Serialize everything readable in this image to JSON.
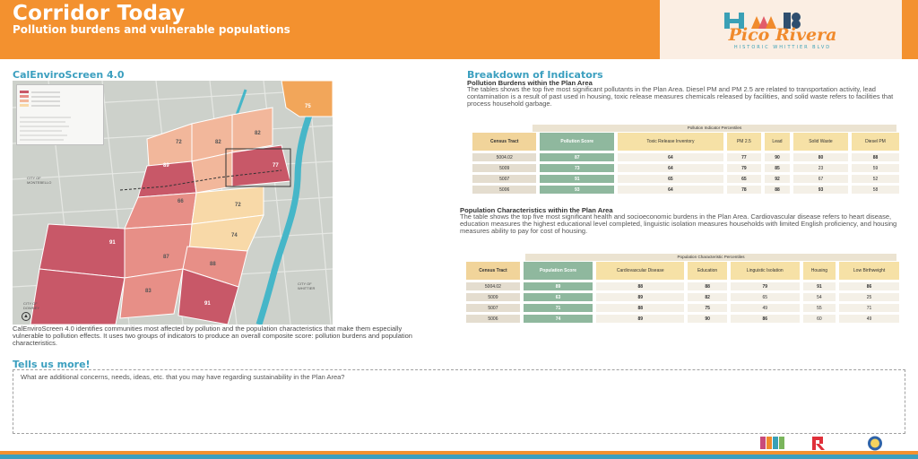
{
  "header": {
    "title": "Corridor Today",
    "subtitle": "Pollution burdens and vulnerable populations"
  },
  "logo": {
    "letters": "HWB",
    "name": "Pico Rivera",
    "tagline": "HISTORIC WHITTIER BLVD"
  },
  "map_section": {
    "title": "CalEnviroScreen 4.0",
    "caption": "CalEnviroScreen 4.0 identifies communities most affected by pollution and the population characteristics that make them especially vulnerable to pollution effects. It uses two groups of indicators to produce an overall composite score: pollution burdens and population characteristics.",
    "tract_scores": [
      "75",
      "72",
      "82",
      "82",
      "89",
      "77",
      "66",
      "72",
      "74",
      "91",
      "87",
      "88",
      "83",
      "91"
    ],
    "place_labels": [
      "CITY OF MONTEBELLO",
      "CITY OF DOWNEY",
      "CITY OF WHITTIER"
    ],
    "colors": {
      "high": "#c85868",
      "mid_high": "#e78f87",
      "mid": "#f2b79b",
      "low": "#f8d9a8",
      "orange": "#f2a65a",
      "water": "#46b6c8"
    }
  },
  "breakdown": {
    "title": "Breakdown of Indicators",
    "pollution": {
      "subtitle": "Pollution Burdens within the Plan Area",
      "text": "The tables shows the top five most significant pollutants in the Plan Area. Diesel PM and PM 2.5 are related to transportation activity, lead contamination is a result of past used in housing, toxic release measures chemicals released by facilities, and solid waste refers to facilities that process household garbage.",
      "caption": "Pollution Indicator Percentiles",
      "headers": [
        "Census Tract",
        "Pollution Score",
        "Toxic Release Inventory",
        "PM 2.5",
        "Lead",
        "Solid Waste",
        "Diesel PM"
      ],
      "rows": [
        [
          "5004.02",
          "87",
          "64",
          "77",
          "90",
          "80",
          "88"
        ],
        [
          "5009",
          "73",
          "64",
          "79",
          "85",
          "23",
          "59"
        ],
        [
          "5007",
          "91",
          "65",
          "65",
          "92",
          "67",
          "52"
        ],
        [
          "5006",
          "93",
          "64",
          "78",
          "88",
          "93",
          "58"
        ]
      ]
    },
    "population": {
      "subtitle": "Population Characteristics within the Plan Area",
      "text": "The table shows the top five most significant health and socioeconomic burdens in the Plan Area. Cardiovascular disease refers to heart disease, education measures the highest educational level completed, linguistic isolation measures households with limited English proficiency, and housing measures ability to pay for cost of housing.",
      "caption": "Population Characteristic Percentiles",
      "headers": [
        "Census Tract",
        "Population Score",
        "Cardiovascular Disease",
        "Education",
        "Linguistic Isolation",
        "Housing",
        "Low Birthweight"
      ],
      "rows": [
        [
          "5004.02",
          "89",
          "88",
          "88",
          "79",
          "91",
          "86"
        ],
        [
          "5009",
          "63",
          "89",
          "82",
          "65",
          "54",
          "25"
        ],
        [
          "5007",
          "71",
          "88",
          "75",
          "49",
          "55",
          "71"
        ],
        [
          "5006",
          "74",
          "89",
          "90",
          "86",
          "60",
          "49"
        ]
      ]
    }
  },
  "feedback": {
    "title": "Tells us more!",
    "question": "What are additional concerns, needs, ideas, etc. that you may have regarding sustainability in the Plan Area?"
  }
}
